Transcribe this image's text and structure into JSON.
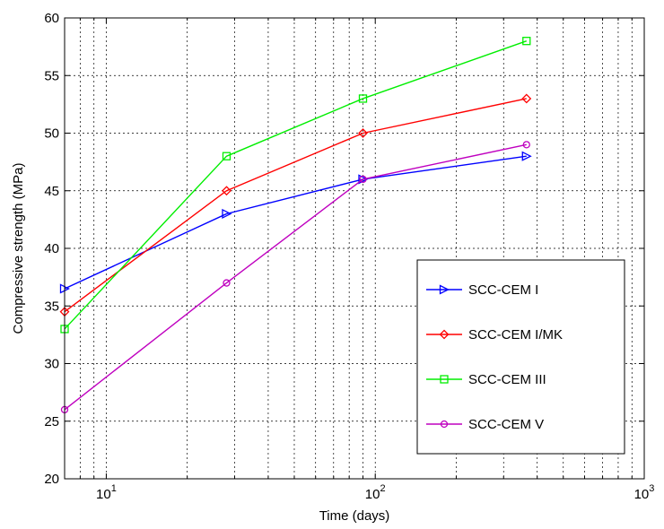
{
  "chart_data": {
    "type": "line",
    "title": "",
    "xlabel": "Time (days)",
    "ylabel": "Compressive strength (MPa)",
    "xscale": "log",
    "xlim": [
      7,
      1000
    ],
    "ylim": [
      20,
      60
    ],
    "xticks": [
      {
        "value": 10,
        "base": "10",
        "exp": "1"
      },
      {
        "value": 100,
        "base": "10",
        "exp": "2"
      },
      {
        "value": 1000,
        "base": "10",
        "exp": "3"
      }
    ],
    "yticks": [
      20,
      25,
      30,
      35,
      40,
      45,
      50,
      55,
      60
    ],
    "grid": true,
    "legend_position": "lower-right",
    "series": [
      {
        "name": "SCC-CEM I",
        "color": "#0000ff",
        "marker": "triangle-right",
        "x": [
          7,
          28,
          90,
          365
        ],
        "y": [
          36.5,
          43,
          46,
          48
        ]
      },
      {
        "name": "SCC-CEM I/MK",
        "color": "#ff0000",
        "marker": "diamond",
        "x": [
          7,
          28,
          90,
          365
        ],
        "y": [
          34.5,
          45,
          50,
          53
        ]
      },
      {
        "name": "SCC-CEM III",
        "color": "#00ee00",
        "marker": "square",
        "x": [
          7,
          28,
          90,
          365
        ],
        "y": [
          33,
          48,
          53,
          58
        ]
      },
      {
        "name": "SCC-CEM V",
        "color": "#bf00bf",
        "marker": "circle",
        "x": [
          7,
          28,
          90,
          365
        ],
        "y": [
          26,
          37,
          46,
          49
        ]
      }
    ]
  }
}
